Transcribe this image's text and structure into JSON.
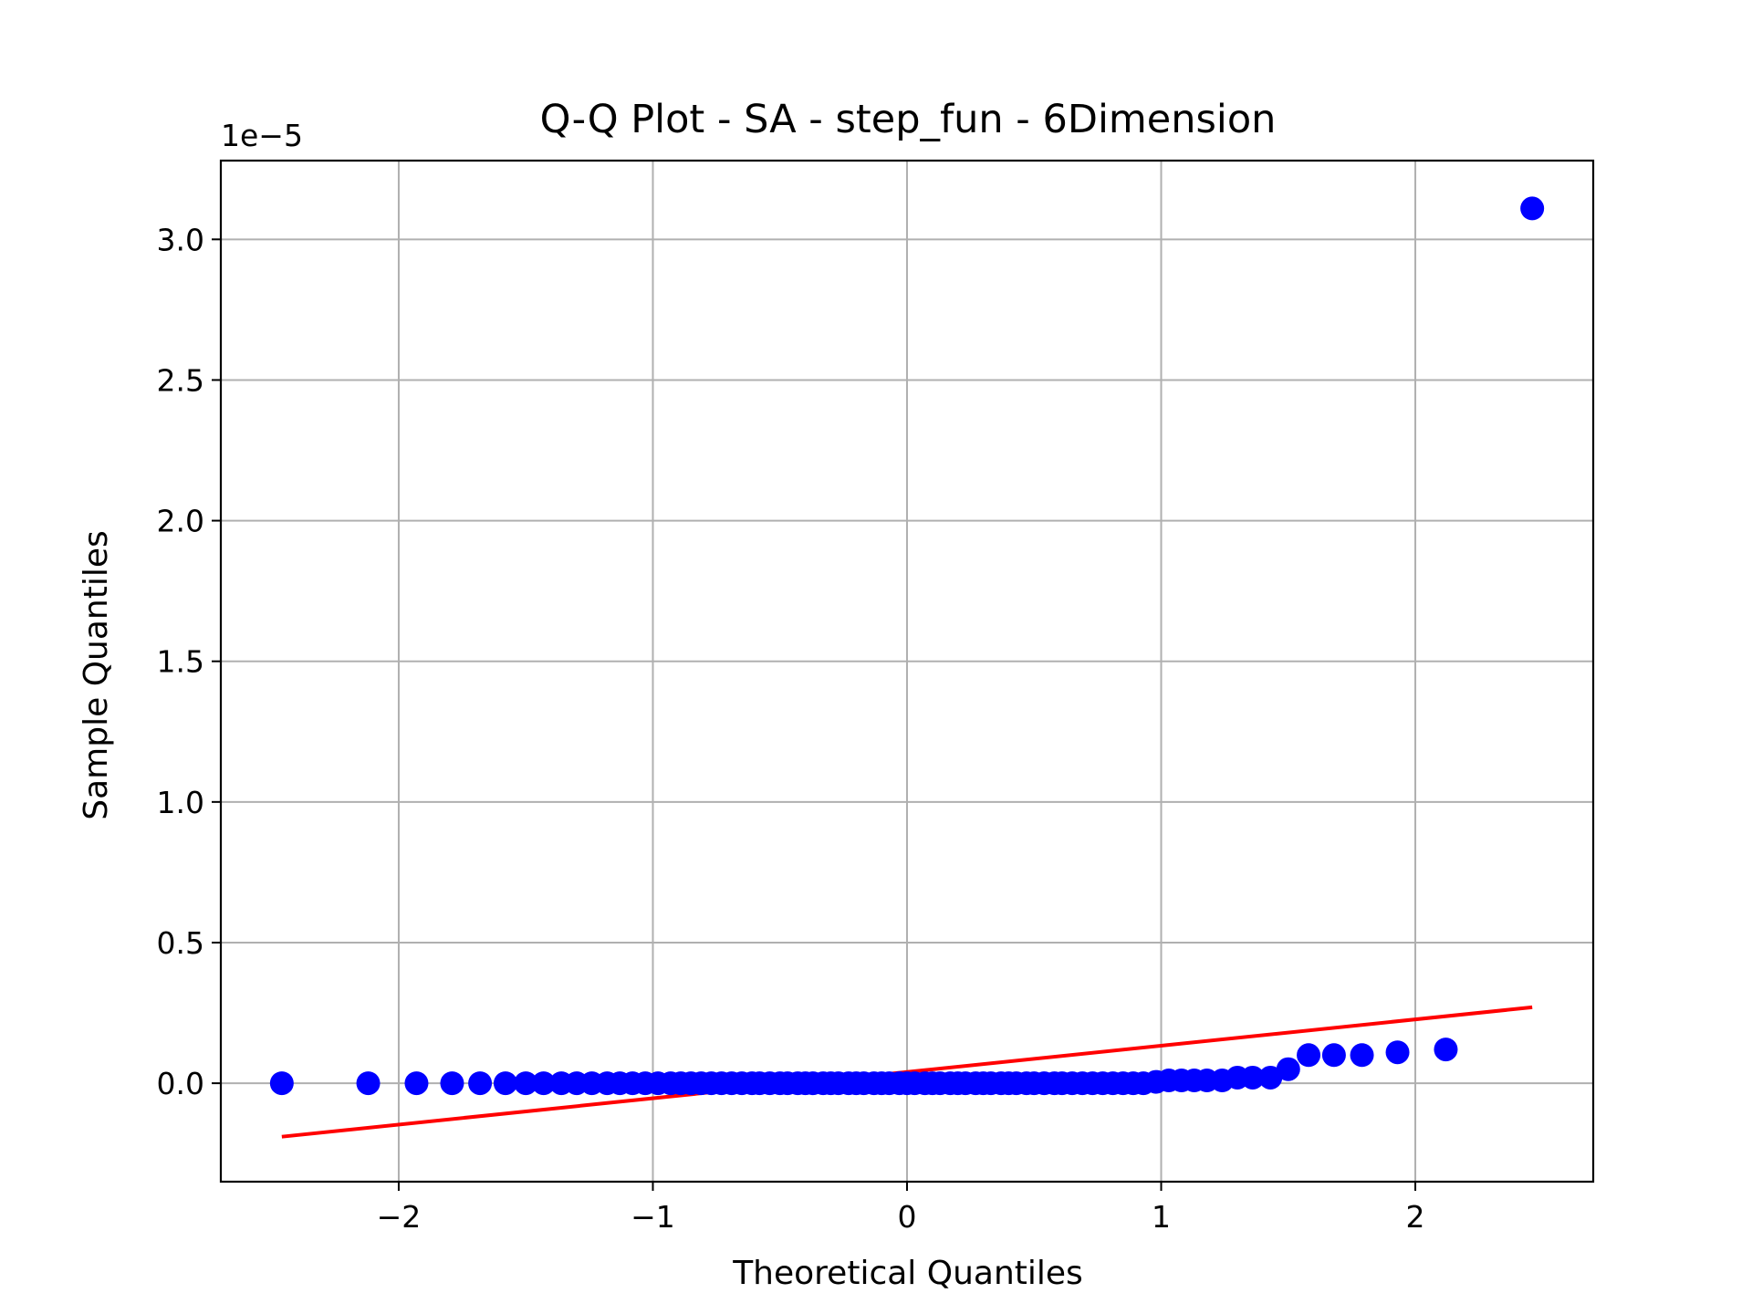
{
  "chart_data": {
    "type": "scatter",
    "title": "Q-Q Plot - SA - step_fun - 6Dimension",
    "xlabel": "Theoretical Quantiles",
    "ylabel": "Sample Quantiles",
    "y_offset_label": "1e−5",
    "y_scale": 1e-05,
    "xlim": [
      -2.7,
      2.7
    ],
    "ylim": [
      -0.35,
      3.28
    ],
    "x_ticks": [
      -2,
      -1,
      0,
      1,
      2
    ],
    "x_tick_labels": [
      "−2",
      "−1",
      "0",
      "1",
      "2"
    ],
    "y_ticks": [
      0.0,
      0.5,
      1.0,
      1.5,
      2.0,
      2.5,
      3.0
    ],
    "y_tick_labels": [
      "0.0",
      "0.5",
      "1.0",
      "1.5",
      "2.0",
      "2.5",
      "3.0"
    ],
    "grid": true,
    "colors": {
      "points": "#0000ff",
      "fit_line": "#ff0000",
      "grid": "#b0b0b0"
    },
    "series": [
      {
        "kind": "points",
        "x": [
          -2.46,
          -2.12,
          -1.93,
          -1.79,
          -1.68,
          -1.58,
          -1.5,
          -1.43,
          -1.36,
          -1.3,
          -1.24,
          -1.18,
          -1.13,
          -1.08,
          -1.03,
          -0.98,
          -0.93,
          -0.89,
          -0.85,
          -0.81,
          -0.77,
          -0.73,
          -0.69,
          -0.65,
          -0.61,
          -0.58,
          -0.54,
          -0.5,
          -0.47,
          -0.43,
          -0.4,
          -0.37,
          -0.33,
          -0.3,
          -0.27,
          -0.23,
          -0.2,
          -0.17,
          -0.13,
          -0.1,
          -0.07,
          -0.03,
          0.0,
          0.03,
          0.07,
          0.1,
          0.13,
          0.17,
          0.2,
          0.23,
          0.27,
          0.3,
          0.33,
          0.37,
          0.4,
          0.43,
          0.47,
          0.5,
          0.54,
          0.58,
          0.61,
          0.65,
          0.69,
          0.73,
          0.77,
          0.81,
          0.85,
          0.89,
          0.93,
          0.98,
          1.03,
          1.08,
          1.13,
          1.18,
          1.24,
          1.3,
          1.36,
          1.43,
          1.5,
          1.58,
          1.68,
          1.79,
          1.93,
          2.12,
          2.46
        ],
        "y": [
          0.0,
          0.0,
          0.0,
          0.0,
          0.0,
          0.0,
          0.0,
          0.0,
          0.0,
          0.0,
          0.0,
          0.0,
          0.0,
          0.0,
          0.0,
          0.0,
          0.0,
          0.0,
          0.0,
          0.0,
          0.0,
          0.0,
          0.0,
          0.0,
          0.0,
          0.0,
          0.0,
          0.0,
          0.0,
          0.0,
          0.0,
          0.0,
          0.0,
          0.0,
          0.0,
          0.0,
          0.0,
          0.0,
          0.0,
          0.0,
          0.0,
          0.0,
          0.0,
          0.0,
          0.0,
          0.0,
          0.0,
          0.0,
          0.0,
          0.0,
          0.0,
          0.0,
          0.0,
          0.0,
          0.0,
          0.0,
          0.0,
          0.0,
          0.0,
          0.0,
          0.0,
          0.0,
          0.0,
          0.0,
          0.0,
          0.0,
          0.0,
          0.0,
          0.0,
          0.005,
          0.01,
          0.01,
          0.01,
          0.01,
          0.01,
          0.02,
          0.02,
          0.02,
          0.05,
          0.1,
          0.1,
          0.1,
          0.11,
          0.12,
          3.11
        ]
      },
      {
        "kind": "line",
        "x": [
          -2.46,
          2.46
        ],
        "y": [
          -0.19,
          0.27
        ]
      }
    ]
  }
}
